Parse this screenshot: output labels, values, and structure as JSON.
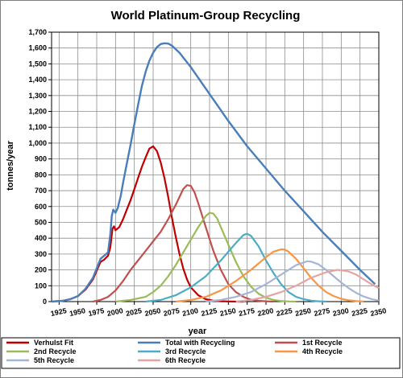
{
  "chart_data": {
    "type": "line",
    "title": "World Platinum-Group  Recycling",
    "xlabel": "year",
    "ylabel": "tonnes/year",
    "xlim": [
      1915,
      2350
    ],
    "ylim": [
      0,
      1700
    ],
    "y_ticks": [
      0,
      100,
      200,
      300,
      400,
      500,
      600,
      700,
      800,
      900,
      1000,
      1100,
      1200,
      1300,
      1400,
      1500,
      1600,
      1700
    ],
    "y_tick_labels": [
      "0",
      "100",
      "200",
      "300",
      "400",
      "500",
      "600",
      "700",
      "800",
      "900",
      "1,000",
      "1,100",
      "1,200",
      "1,300",
      "1,400",
      "1,500",
      "1,600",
      "1,700"
    ],
    "x_tick_labels": [
      "1925",
      "1950",
      "1975",
      "2000",
      "2025",
      "2050",
      "2075",
      "2100",
      "2125",
      "2150",
      "2175",
      "2200",
      "2225",
      "2250",
      "2275",
      "2300",
      "2325",
      "2350"
    ],
    "x_tick_values": [
      1925,
      1950,
      1975,
      2000,
      2025,
      2050,
      2075,
      2100,
      2125,
      2150,
      2175,
      2200,
      2225,
      2250,
      2275,
      2300,
      2325,
      2350
    ],
    "grid": true,
    "legend_position": "bottom",
    "series": [
      {
        "name": "Verhulst Fit",
        "color": "#c00000",
        "x": [
          1915,
          1930,
          1940,
          1950,
          1960,
          1970,
          1980,
          1985,
          1990,
          1993,
          1996,
          1998,
          2000,
          2005,
          2010,
          2015,
          2020,
          2025,
          2030,
          2035,
          2040,
          2045,
          2050,
          2055,
          2060,
          2065,
          2070,
          2075,
          2080,
          2085,
          2090,
          2095,
          2100,
          2110,
          2120,
          2130,
          2140,
          2150,
          2160,
          2170
        ],
        "y": [
          0,
          5,
          15,
          35,
          75,
          140,
          250,
          265,
          290,
          340,
          460,
          475,
          450,
          470,
          520,
          580,
          640,
          710,
          780,
          850,
          910,
          965,
          980,
          950,
          880,
          780,
          660,
          530,
          410,
          300,
          210,
          140,
          90,
          40,
          15,
          6,
          2,
          1,
          0,
          0
        ]
      },
      {
        "name": "Total with Recycling",
        "color": "#4a7ebb",
        "x": [
          1915,
          1930,
          1940,
          1950,
          1960,
          1970,
          1980,
          1985,
          1990,
          1993,
          1995,
          1997,
          2000,
          2003,
          2007,
          2010,
          2015,
          2020,
          2025,
          2030,
          2035,
          2040,
          2045,
          2050,
          2055,
          2060,
          2065,
          2070,
          2075,
          2085,
          2100,
          2125,
          2150,
          2175,
          2200,
          2225,
          2250,
          2275,
          2300,
          2325,
          2345
        ],
        "y": [
          0,
          5,
          15,
          35,
          80,
          150,
          270,
          290,
          310,
          420,
          540,
          580,
          560,
          590,
          670,
          750,
          870,
          990,
          1120,
          1240,
          1360,
          1450,
          1520,
          1570,
          1605,
          1625,
          1630,
          1628,
          1615,
          1570,
          1480,
          1310,
          1140,
          980,
          840,
          700,
          570,
          440,
          320,
          200,
          110
        ]
      },
      {
        "name": "1st Recycle",
        "color": "#c0504d",
        "x": [
          1970,
          1980,
          1990,
          2000,
          2010,
          2020,
          2030,
          2040,
          2050,
          2060,
          2070,
          2080,
          2085,
          2090,
          2095,
          2100,
          2105,
          2110,
          2120,
          2130,
          2140,
          2150,
          2160,
          2170,
          2180,
          2190,
          2200,
          2210
        ],
        "y": [
          0,
          10,
          30,
          70,
          130,
          200,
          260,
          320,
          380,
          440,
          520,
          610,
          660,
          710,
          735,
          730,
          690,
          620,
          470,
          320,
          200,
          110,
          60,
          30,
          12,
          5,
          2,
          0
        ]
      },
      {
        "name": "2nd Recycle",
        "color": "#9bbb59",
        "x": [
          2000,
          2020,
          2040,
          2050,
          2060,
          2070,
          2080,
          2090,
          2100,
          2110,
          2120,
          2125,
          2130,
          2135,
          2140,
          2150,
          2160,
          2170,
          2180,
          2190,
          2200,
          2210,
          2220,
          2230,
          2240
        ],
        "y": [
          0,
          10,
          30,
          60,
          100,
          160,
          230,
          310,
          390,
          470,
          540,
          560,
          555,
          525,
          470,
          360,
          250,
          160,
          95,
          50,
          25,
          10,
          4,
          1,
          0
        ]
      },
      {
        "name": "3rd Recycle",
        "color": "#4bacc6",
        "x": [
          2040,
          2060,
          2080,
          2100,
          2120,
          2140,
          2160,
          2170,
          2175,
          2180,
          2190,
          2200,
          2210,
          2220,
          2230,
          2240,
          2250,
          2260,
          2270,
          2280
        ],
        "y": [
          0,
          10,
          40,
          90,
          160,
          260,
          370,
          420,
          428,
          415,
          350,
          260,
          180,
          110,
          60,
          30,
          15,
          6,
          2,
          0
        ]
      },
      {
        "name": "4th Recycle",
        "color": "#f79646",
        "x": [
          2080,
          2100,
          2120,
          2140,
          2160,
          2180,
          2200,
          2210,
          2220,
          2225,
          2230,
          2240,
          2250,
          2260,
          2270,
          2280,
          2290,
          2300,
          2310,
          2320,
          2330
        ],
        "y": [
          0,
          10,
          30,
          70,
          130,
          200,
          280,
          315,
          330,
          328,
          315,
          270,
          210,
          150,
          100,
          60,
          35,
          18,
          8,
          3,
          0
        ]
      },
      {
        "name": "5th Recycle",
        "color": "#a5b5d4",
        "x": [
          2120,
          2140,
          2160,
          2180,
          2200,
          2220,
          2240,
          2255,
          2260,
          2270,
          2280,
          2290,
          2300,
          2310,
          2320,
          2330,
          2340,
          2350
        ],
        "y": [
          0,
          10,
          30,
          60,
          110,
          170,
          230,
          255,
          252,
          235,
          200,
          160,
          120,
          85,
          55,
          32,
          16,
          6
        ]
      },
      {
        "name": "6th Recycle",
        "color": "#e6a3a3",
        "x": [
          2160,
          2180,
          2200,
          2220,
          2240,
          2260,
          2280,
          2295,
          2300,
          2310,
          2320,
          2330,
          2340,
          2350
        ],
        "y": [
          0,
          10,
          30,
          60,
          100,
          150,
          185,
          200,
          198,
          190,
          170,
          140,
          110,
          85
        ]
      }
    ]
  }
}
